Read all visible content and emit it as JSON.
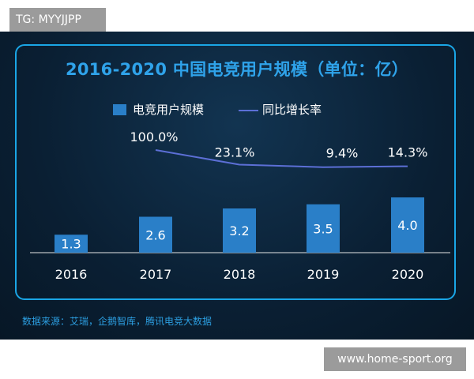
{
  "watermark_top": "TG: MYYJJPP",
  "watermark_bottom": "www.home-sport.org",
  "source": "数据来源：艾瑞，企鹅智库，腾讯电竞大数据",
  "colors": {
    "bar": "#2a7fc8",
    "line": "#5c6fd6",
    "title": "#2fa3ea",
    "frame": "#1aa6e6"
  },
  "chart_data": {
    "type": "bar",
    "title": "2016-2020 中国电竞用户规模（单位：亿）",
    "categories": [
      "2016",
      "2017",
      "2018",
      "2019",
      "2020"
    ],
    "series": [
      {
        "name": "电竞用户规模",
        "type": "bar",
        "values": [
          1.3,
          2.6,
          3.2,
          3.5,
          4.0
        ],
        "labels": [
          "1.3",
          "2.6",
          "3.2",
          "3.5",
          "4.0"
        ]
      },
      {
        "name": "同比增长率",
        "type": "line",
        "values": [
          null,
          100.0,
          23.1,
          9.4,
          14.3
        ],
        "labels": [
          "",
          "100.0%",
          "23.1%",
          "9.4%",
          "14.3%"
        ]
      }
    ],
    "legend_position": "top-center",
    "grid": false
  }
}
